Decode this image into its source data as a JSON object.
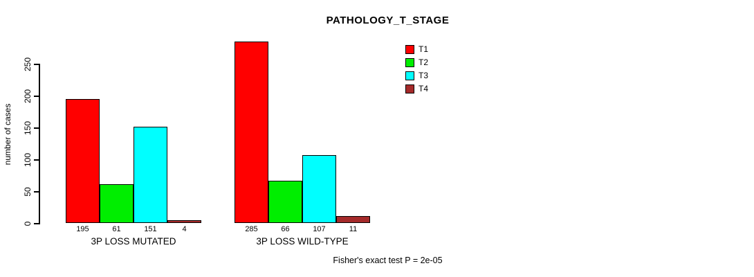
{
  "chart_data": {
    "type": "bar",
    "title": "PATHOLOGY_T_STAGE",
    "ylabel": "number of cases",
    "xlabel": "",
    "ylim": [
      0,
      250
    ],
    "yticks": [
      0,
      50,
      100,
      150,
      200,
      250
    ],
    "grid": false,
    "legend_position": "top-right",
    "series": [
      {
        "name": "T1",
        "color": "#FF0000"
      },
      {
        "name": "T2",
        "color": "#00EE00"
      },
      {
        "name": "T3",
        "color": "#00FFFF"
      },
      {
        "name": "T4",
        "color": "#A52A2A"
      }
    ],
    "groups": [
      {
        "label": "3P LOSS MUTATED",
        "values": [
          195,
          61,
          151,
          4
        ]
      },
      {
        "label": "3P LOSS WILD-TYPE",
        "values": [
          285,
          66,
          107,
          11
        ]
      }
    ],
    "annotation": "Fisher's exact test P = 2e-05"
  }
}
